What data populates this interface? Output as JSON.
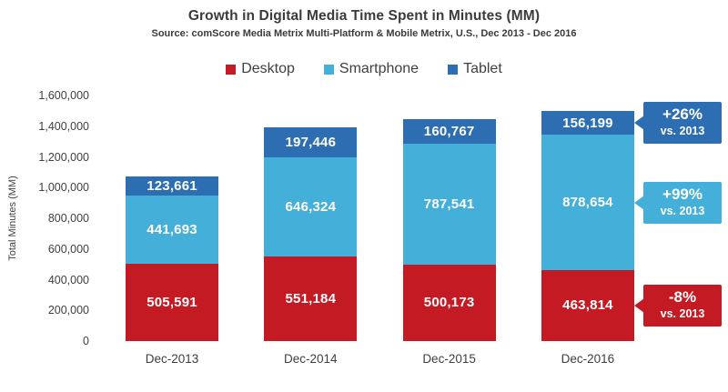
{
  "title": "Growth in Digital Media Time Spent in Minutes (MM)",
  "subtitle": "Source: comScore Media Metrix Multi-Platform & Mobile Metrix, U.S., Dec 2013 - Dec 2016",
  "colors": {
    "desktop_red": "#C31A23",
    "smartphone_blue": "#44AFD8",
    "tablet_blue": "#2D6EB3",
    "axis_text": "#3F3F3F",
    "bar_label_text": "#FFFFFF",
    "background": "#FFFFFF"
  },
  "chart_data": {
    "type": "bar",
    "stacked": true,
    "title": "Growth in Digital Media Time Spent in Minutes (MM)",
    "subtitle": "Source: comScore Media Metrix Multi-Platform & Mobile Metrix, U.S., Dec 2013 - Dec 2016",
    "categories": [
      "Dec-2013",
      "Dec-2014",
      "Dec-2015",
      "Dec-2016"
    ],
    "series": [
      {
        "name": "Desktop",
        "color": "#C31A23",
        "values": [
          505591,
          551184,
          500173,
          463814
        ]
      },
      {
        "name": "Smartphone",
        "color": "#44AFD8",
        "values": [
          441693,
          646324,
          787541,
          878654
        ]
      },
      {
        "name": "Tablet",
        "color": "#2D6EB3",
        "values": [
          123661,
          197446,
          160767,
          156199
        ]
      }
    ],
    "xlabel": "",
    "ylabel": "Total Minutes (MM)",
    "ylim": [
      0,
      1600000
    ],
    "ytick_step": 200000,
    "ytick_labels": [
      "0",
      "200,000",
      "400,000",
      "600,000",
      "800,000",
      "1,000,000",
      "1,200,000",
      "1,400,000",
      "1,600,000"
    ],
    "grid": false,
    "legend_position": "top",
    "legend_entries": [
      "Desktop",
      "Smartphone",
      "Tablet"
    ],
    "annotations": [
      {
        "target_series": "Tablet",
        "target_category": "Dec-2016",
        "lines": [
          "+26%",
          "vs. 2013"
        ]
      },
      {
        "target_series": "Smartphone",
        "target_category": "Dec-2016",
        "lines": [
          "+99%",
          "vs. 2013"
        ]
      },
      {
        "target_series": "Desktop",
        "target_category": "Dec-2016",
        "lines": [
          "-8%",
          "vs. 2013"
        ]
      }
    ]
  }
}
